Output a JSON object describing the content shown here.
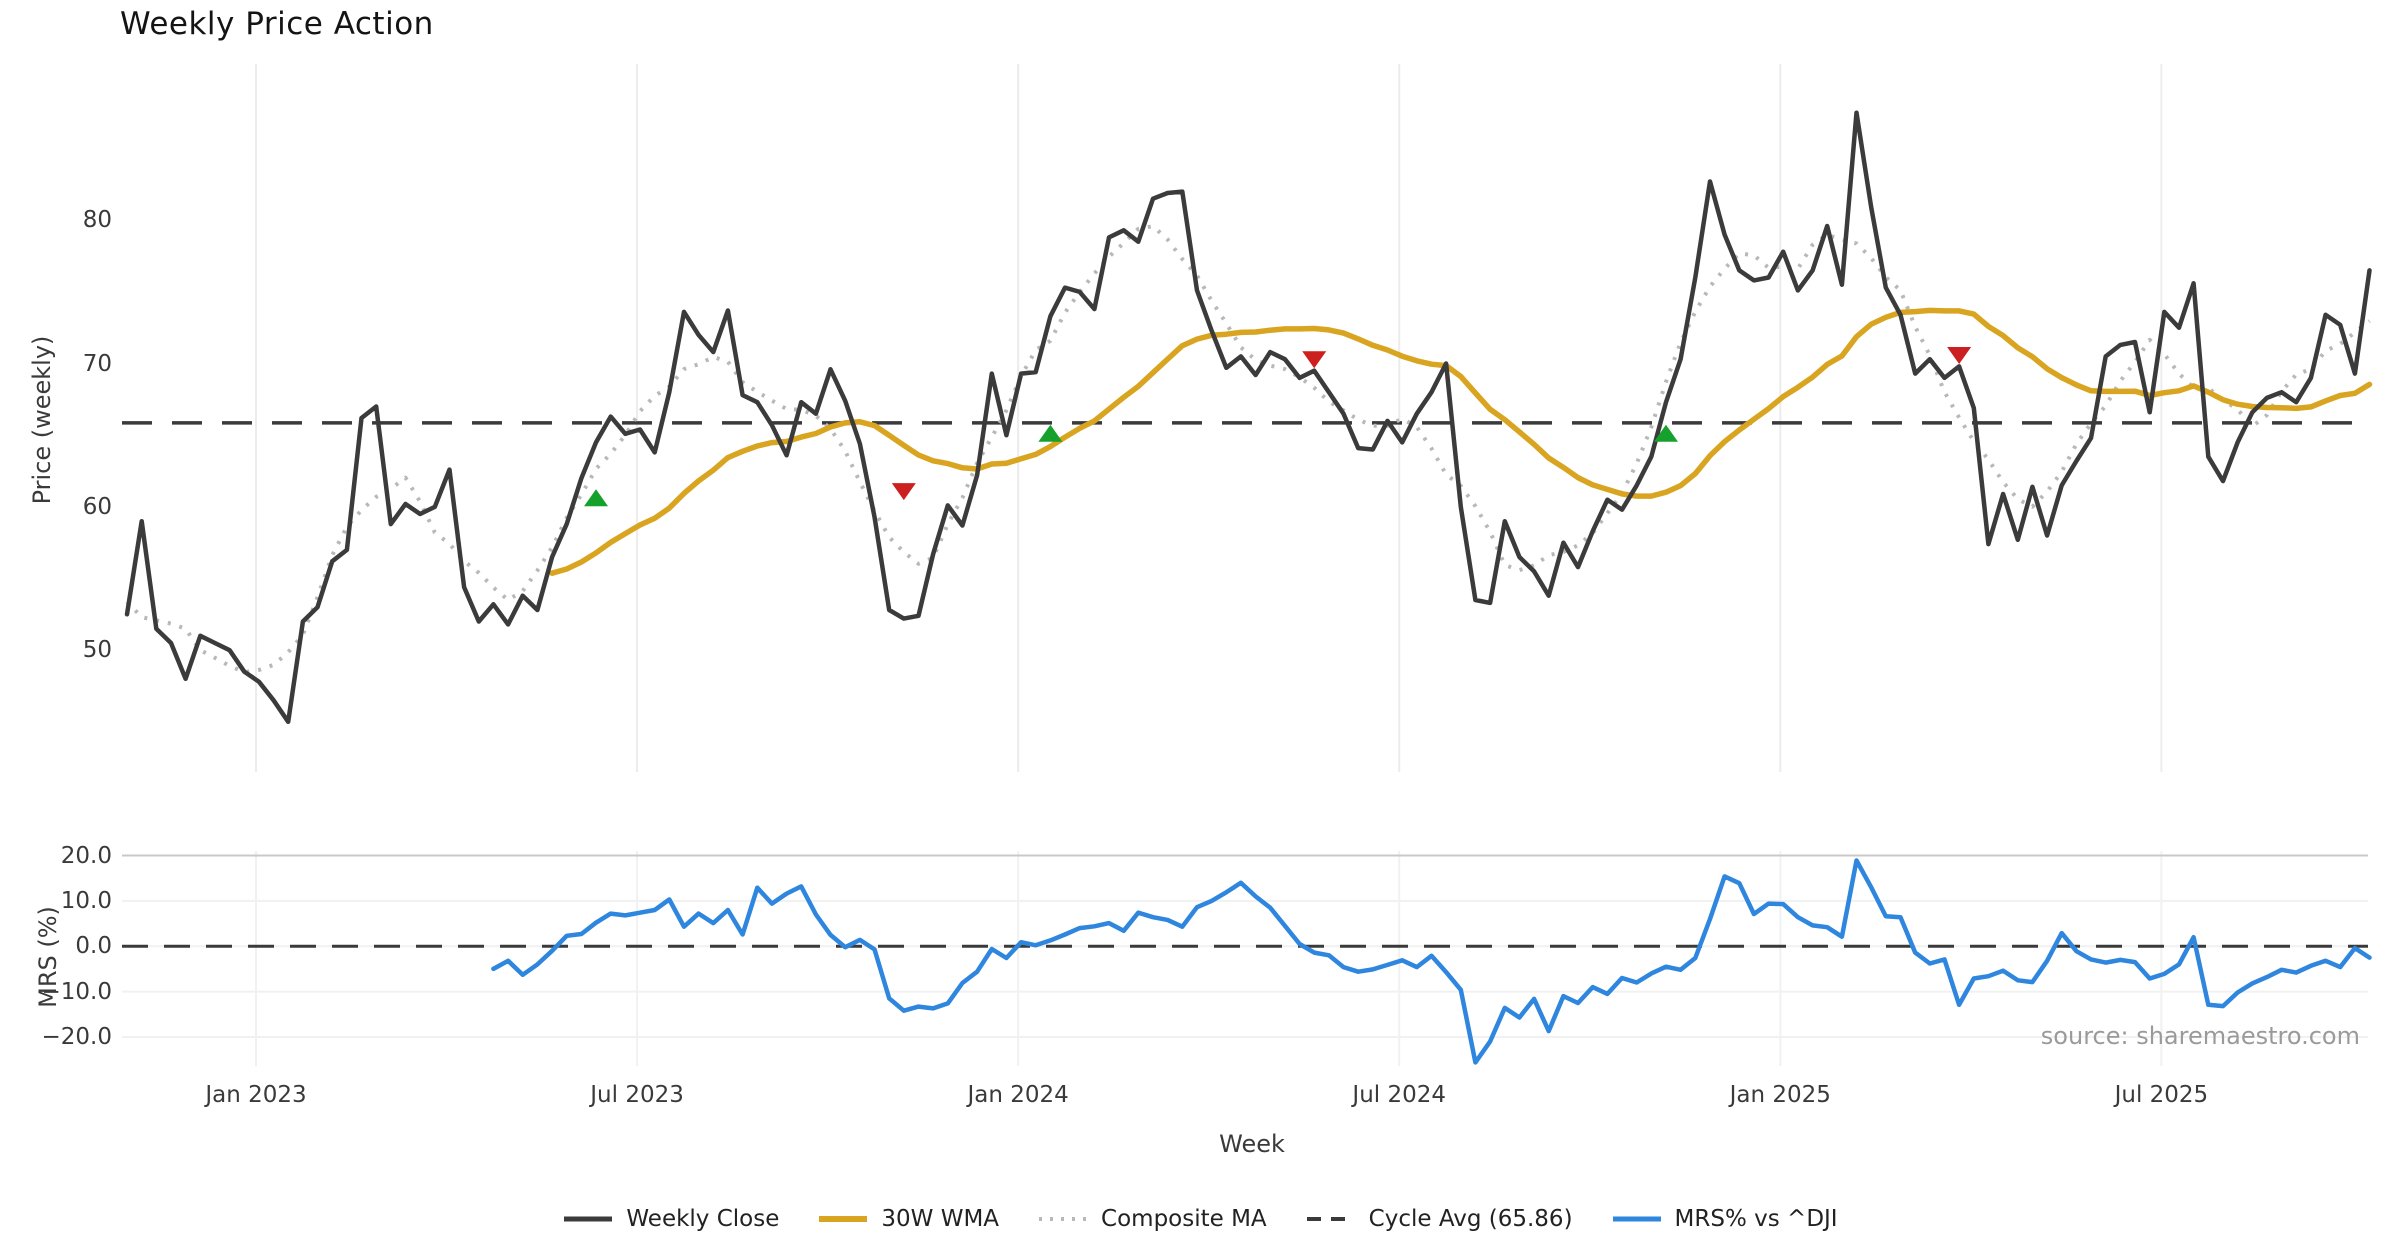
{
  "chart_data": {
    "type": "line",
    "title": "Weekly Price Action",
    "xlabel": "Week",
    "source": "source: sharemaestro.com",
    "x_axis": {
      "tick_labels": [
        "Jan 2023",
        "Jul 2023",
        "Jan 2024",
        "Jul 2024",
        "Jan 2025",
        "Jul 2025"
      ],
      "tick_weeks": [
        8.8,
        34.8,
        60.8,
        86.8,
        112.8,
        138.8
      ]
    },
    "top_panel": {
      "ylabel": "Price (weekly)",
      "ytick_labels": [
        "80",
        "70",
        "60",
        "50"
      ],
      "ytick_values": [
        80,
        70,
        60,
        50
      ],
      "ylim": [
        41.5,
        90.9
      ],
      "cycle_avg": 65.86,
      "grid": "vertical-only",
      "series": {
        "weekly_close": [
          52.5,
          59.0,
          51.5,
          50.5,
          48.0,
          51.0,
          50.5,
          50.0,
          48.5,
          47.8,
          46.5,
          45.0,
          52.0,
          53.0,
          56.2,
          57.0,
          66.2,
          67.0,
          58.8,
          60.2,
          59.5,
          60.0,
          62.6,
          54.4,
          52.0,
          53.2,
          51.8,
          53.8,
          52.8,
          56.5,
          58.8,
          62.0,
          64.5,
          66.3,
          65.1,
          65.4,
          63.8,
          68.0,
          73.6,
          72.0,
          70.8,
          73.7,
          67.8,
          67.3,
          65.7,
          63.6,
          67.3,
          66.5,
          69.6,
          67.4,
          64.4,
          59.3,
          52.8,
          52.2,
          52.4,
          56.7,
          60.1,
          58.7,
          62.2,
          69.3,
          65.0,
          69.3,
          69.4,
          73.3,
          75.3,
          75.0,
          73.8,
          78.8,
          79.3,
          78.5,
          81.5,
          81.9,
          82.0,
          75.1,
          72.3,
          69.7,
          70.5,
          69.2,
          70.8,
          70.3,
          69.0,
          69.5,
          68.0,
          66.5,
          64.1,
          64.0,
          66.0,
          64.5,
          66.5,
          68.0,
          70.0,
          60.0,
          53.5,
          53.3,
          59.0,
          56.5,
          55.5,
          53.8,
          57.5,
          55.8,
          58.3,
          60.5,
          59.8,
          61.5,
          63.5,
          67.3,
          70.3,
          76.0,
          82.7,
          79.0,
          76.5,
          75.8,
          76.0,
          77.8,
          75.1,
          76.5,
          79.6,
          75.5,
          87.5,
          80.9,
          75.3,
          73.4,
          69.3,
          70.3,
          69.0,
          69.8,
          66.9,
          57.4,
          60.9,
          57.7,
          61.4,
          58.0,
          61.5,
          63.2,
          64.8,
          70.5,
          71.3,
          71.5,
          66.6,
          73.6,
          72.5,
          75.6,
          63.5,
          61.8,
          64.5,
          66.6,
          67.6,
          68.0,
          67.3,
          69.0,
          73.4,
          72.7,
          69.3,
          76.5
        ],
        "wma_window_weeks": 30,
        "composite_ma_window_weeks": 7
      },
      "markers": {
        "buy": [
          {
            "week": 32,
            "price": 60.6
          },
          {
            "week": 63,
            "price": 65.1
          },
          {
            "week": 105,
            "price": 65.1
          }
        ],
        "sell": [
          {
            "week": 53,
            "price": 61.1
          },
          {
            "week": 81,
            "price": 70.3
          },
          {
            "week": 125,
            "price": 70.6
          }
        ]
      }
    },
    "bottom_panel": {
      "ylabel": "MRS (%)",
      "ytick_labels": [
        "20.0",
        "10.0",
        "0.0",
        "−10.0",
        "−20.0"
      ],
      "ytick_values": [
        20,
        10,
        0,
        -10,
        -20
      ],
      "ylim": [
        -26.4,
        21.0
      ],
      "zero_line": 0,
      "series": {
        "mrs_start_week": 25,
        "mrs_vs_dji": [
          -5.0,
          -3.2,
          -6.3,
          -4.0,
          -1.0,
          2.3,
          2.7,
          5.2,
          7.2,
          6.8,
          7.4,
          8.0,
          10.3,
          4.3,
          7.2,
          5.1,
          8.0,
          2.6,
          12.9,
          9.4,
          11.6,
          13.2,
          7.0,
          2.5,
          -0.2,
          1.4,
          -0.7,
          -11.5,
          -14.2,
          -13.3,
          -13.7,
          -12.6,
          -8.1,
          -5.6,
          -0.6,
          -2.6,
          0.9,
          0.2,
          1.3,
          2.6,
          4.0,
          4.4,
          5.1,
          3.4,
          7.4,
          6.4,
          5.8,
          4.3,
          8.6,
          10.0,
          11.9,
          14.0,
          11.0,
          8.5,
          4.5,
          0.5,
          -1.4,
          -2.0,
          -4.6,
          -5.6,
          -5.1,
          -4.1,
          -3.1,
          -4.6,
          -2.1,
          -5.7,
          -9.6,
          -25.6,
          -21.0,
          -13.6,
          -15.7,
          -11.6,
          -18.7,
          -11.0,
          -12.5,
          -9.0,
          -10.5,
          -7.0,
          -8.0,
          -6.0,
          -4.5,
          -5.2,
          -2.6,
          6.0,
          15.4,
          13.9,
          7.1,
          9.4,
          9.3,
          6.4,
          4.6,
          4.2,
          2.1,
          18.9,
          13.0,
          6.6,
          6.4,
          -1.4,
          -3.8,
          -2.9,
          -12.9,
          -7.1,
          -6.6,
          -5.4,
          -7.5,
          -7.9,
          -3.2,
          2.9,
          -1.1,
          -2.9,
          -3.6,
          -3.0,
          -3.5,
          -7.1,
          -6.1,
          -4.0,
          2.0,
          -12.9,
          -13.2,
          -10.2,
          -8.2,
          -6.8,
          -5.2,
          -5.8,
          -4.3,
          -3.2,
          -4.6,
          -0.4,
          -2.5
        ]
      }
    },
    "legend": [
      {
        "label": "Weekly Close",
        "style": "solid",
        "color": "#3b3b3b"
      },
      {
        "label": "30W WMA",
        "style": "solid",
        "color": "#d9a521"
      },
      {
        "label": "Composite MA",
        "style": "dotted",
        "color": "#b8b8b8"
      },
      {
        "label": "Cycle Avg (65.86)",
        "style": "dashed",
        "color": "#3a3a3a"
      },
      {
        "label": "MRS% vs ^DJI",
        "style": "solid",
        "color": "#2e86de"
      }
    ],
    "colors": {
      "close": "#3b3b3b",
      "wma": "#d9a521",
      "composite": "#b8b8b8",
      "cycle_avg": "#3a3a3a",
      "mrs": "#2e86de",
      "buy": "#16a02c",
      "sell": "#cc1f1f",
      "grid": "#ececec",
      "grid_faint": "#f1f1f1",
      "panel_spine": "#c9c9c9",
      "background": "#ffffff"
    }
  }
}
